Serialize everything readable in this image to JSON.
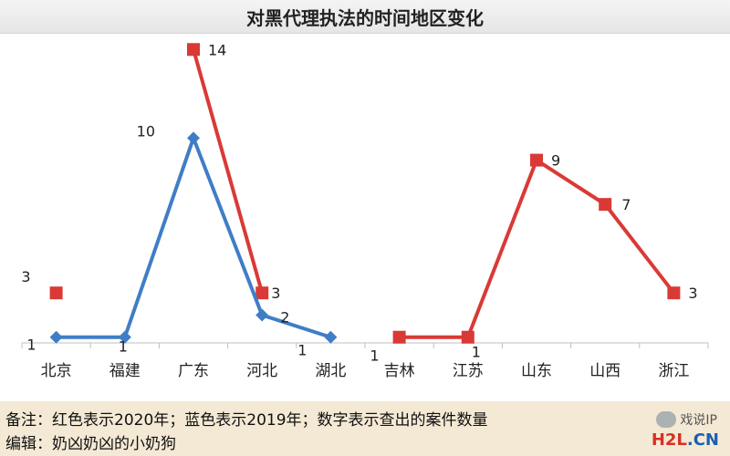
{
  "chart_data": {
    "type": "line",
    "title": "对黑代理执法的时间地区变化",
    "categories": [
      "北京",
      "福建",
      "广东",
      "河北",
      "湖北",
      "吉林",
      "江苏",
      "山东",
      "山西",
      "浙江"
    ],
    "ylim": [
      0,
      15
    ],
    "grid": false,
    "series": [
      {
        "name": "2020年",
        "color": "#d93a36",
        "marker": "square",
        "values": [
          3,
          null,
          14,
          3,
          null,
          1,
          1,
          9,
          7,
          3
        ],
        "labels": [
          "3",
          "",
          "14",
          "3",
          "",
          "1",
          "1",
          "9",
          "7",
          "3"
        ]
      },
      {
        "name": "2019年",
        "color": "#3f7ec6",
        "marker": "diamond",
        "values": [
          1,
          1,
          10,
          2,
          1,
          null,
          null,
          null,
          null,
          null
        ],
        "labels": [
          "1",
          "1",
          "10",
          "2",
          "1",
          "",
          "",
          "",
          "",
          ""
        ]
      }
    ]
  },
  "notes": {
    "line1": "备注：红色表示2020年；蓝色表示2019年；数字表示查出的案件数量",
    "line2": "编辑：奶凶奶凶的小奶狗"
  },
  "watermark": {
    "text1": "戏说IP",
    "logo_h2l": "H2L",
    "logo_cn": ".CN"
  }
}
